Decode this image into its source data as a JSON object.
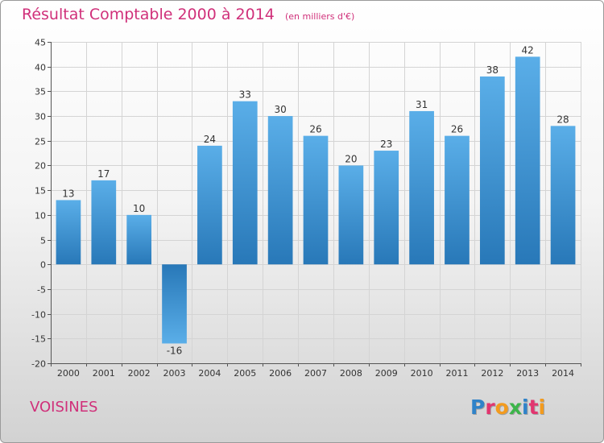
{
  "header": {
    "title": "Résultat Comptable 2000 à 2014",
    "unit": "(en milliers d'€)"
  },
  "footer": {
    "commune": "VOISINES",
    "logo_letters": [
      {
        "ch": "P",
        "color": "#2f83c9"
      },
      {
        "ch": "r",
        "color": "#e2356f"
      },
      {
        "ch": "o",
        "color": "#f39b1e"
      },
      {
        "ch": "x",
        "color": "#3cb54a"
      },
      {
        "ch": "i",
        "color": "#2f83c9"
      },
      {
        "ch": "t",
        "color": "#e2356f"
      },
      {
        "ch": "i",
        "color": "#f39b1e"
      }
    ]
  },
  "chart_data": {
    "type": "bar",
    "categories": [
      "2000",
      "2001",
      "2002",
      "2003",
      "2004",
      "2005",
      "2006",
      "2007",
      "2008",
      "2009",
      "2010",
      "2011",
      "2012",
      "2013",
      "2014"
    ],
    "values": [
      13,
      17,
      10,
      -16,
      24,
      33,
      30,
      26,
      20,
      23,
      31,
      26,
      38,
      42,
      28
    ],
    "value_labels": [
      "13",
      "17",
      "10",
      "-16",
      "24",
      "33",
      "30",
      "26",
      "20",
      "23",
      "31",
      "26",
      "38",
      "42",
      "28"
    ],
    "yticks": [
      -20,
      -15,
      -10,
      -5,
      0,
      5,
      10,
      15,
      20,
      25,
      30,
      35,
      40,
      45
    ],
    "ytick_labels": [
      "-20",
      "-15",
      "-10",
      "-5",
      "0",
      "5",
      "10",
      "15",
      "20",
      "25",
      "30",
      "35",
      "40",
      "45"
    ],
    "ylim": [
      -20,
      45
    ],
    "grid": true,
    "colors": {
      "bar_top": "#5aaee8",
      "bar_bottom": "#2878b8",
      "bar_neg_top": "#2878b8",
      "bar_neg_bottom": "#5aaee8"
    }
  }
}
